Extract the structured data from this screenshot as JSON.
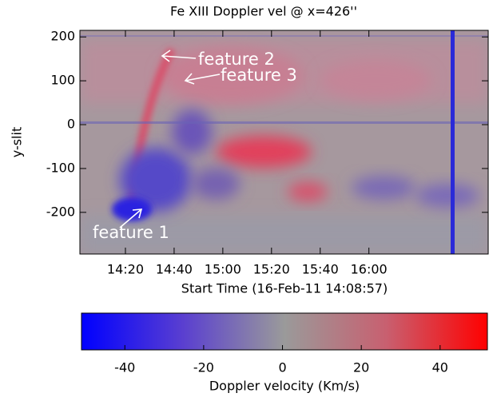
{
  "chart_data": {
    "type": "heatmap",
    "title": "Fe XIII Doppler vel @ x=426''",
    "xlabel": "Start Time (16-Feb-11 14:08:57)",
    "ylabel": "y-slit",
    "xlim": [
      1.3,
      169
    ],
    "xticks": [
      {
        "value": 20,
        "label": "14:20"
      },
      {
        "value": 40,
        "label": "14:40"
      },
      {
        "value": 60,
        "label": "15:00"
      },
      {
        "value": 80,
        "label": "15:20"
      },
      {
        "value": 100,
        "label": "15:40"
      },
      {
        "value": 120,
        "label": "16:00"
      }
    ],
    "ylim": [
      -295,
      215
    ],
    "yticks": [
      -200,
      -100,
      0,
      100,
      200
    ],
    "annotations": [
      "feature 1",
      "feature 2",
      "feature 3"
    ],
    "colorbar": {
      "label": "Doppler velocity (Km/s)",
      "lim": [
        -51,
        52
      ],
      "ticks": [
        -40,
        -20,
        0,
        20,
        40
      ],
      "colors": [
        "#0000ff",
        "#5a3fd0",
        "#9a9a9a",
        "#c86070",
        "#ff0000"
      ]
    }
  }
}
